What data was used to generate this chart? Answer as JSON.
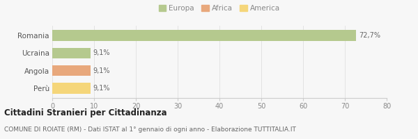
{
  "categories": [
    "Romania",
    "Ucraina",
    "Angola",
    "Perù"
  ],
  "values": [
    72.7,
    9.1,
    9.1,
    9.1
  ],
  "colors": [
    "#b5c98e",
    "#b5c98e",
    "#e8a87c",
    "#f5d67a"
  ],
  "labels": [
    "72,7%",
    "9,1%",
    "9,1%",
    "9,1%"
  ],
  "xlim": [
    0,
    80
  ],
  "xticks": [
    0,
    10,
    20,
    30,
    40,
    50,
    60,
    70,
    80
  ],
  "legend": [
    {
      "label": "Europa",
      "color": "#b5c98e"
    },
    {
      "label": "Africa",
      "color": "#e8a87c"
    },
    {
      "label": "America",
      "color": "#f5d67a"
    }
  ],
  "title_bold": "Cittadini Stranieri per Cittadinanza",
  "subtitle": "COMUNE DI ROIATE (RM) - Dati ISTAT al 1° gennaio di ogni anno - Elaborazione TUTTITALIA.IT",
  "bg_color": "#f7f7f7",
  "bar_height": 0.6,
  "label_fontsize": 7.0,
  "tick_fontsize": 7.0,
  "ytick_fontsize": 7.5,
  "legend_fontsize": 7.5,
  "title_fontsize": 8.5,
  "subtitle_fontsize": 6.5
}
